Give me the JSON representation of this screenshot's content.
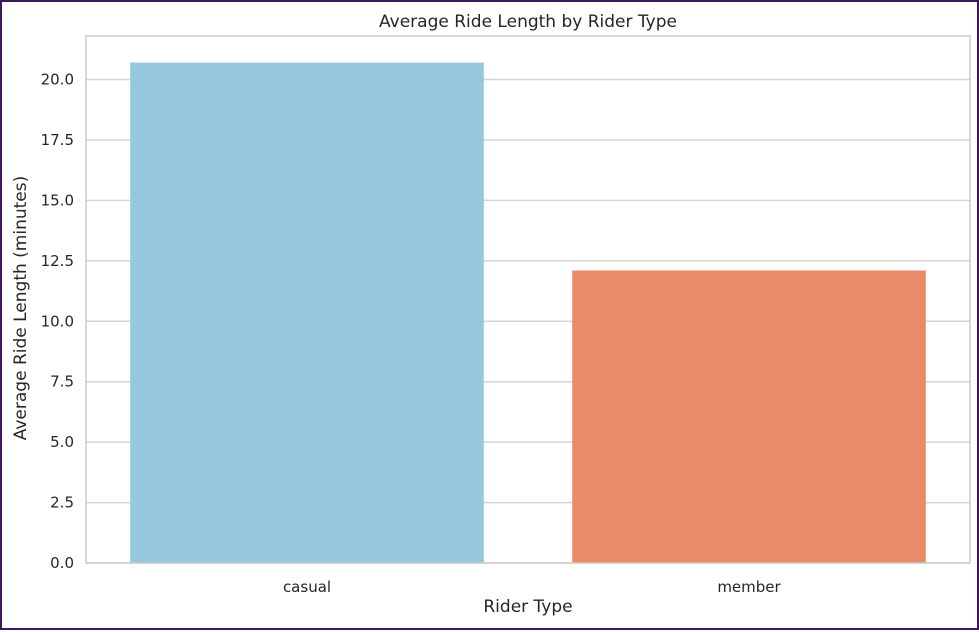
{
  "chart_data": {
    "type": "bar",
    "title": "Average Ride Length by Rider Type",
    "xlabel": "Rider Type",
    "ylabel": "Average Ride Length (minutes)",
    "categories": [
      "casual",
      "member"
    ],
    "values": [
      20.7,
      12.1
    ],
    "colors": [
      "#95c8de",
      "#e98b67"
    ],
    "ylim": [
      0,
      21.8
    ],
    "yticks": [
      0.0,
      2.5,
      5.0,
      7.5,
      10.0,
      12.5,
      15.0,
      17.5,
      20.0
    ],
    "ytick_labels": [
      "0.0",
      "2.5",
      "5.0",
      "7.5",
      "10.0",
      "12.5",
      "15.0",
      "17.5",
      "20.0"
    ],
    "grid": true,
    "grid_color": "#d5d5d5",
    "spine_color": "#cccccc",
    "frame_color": "#3b1a5a"
  }
}
